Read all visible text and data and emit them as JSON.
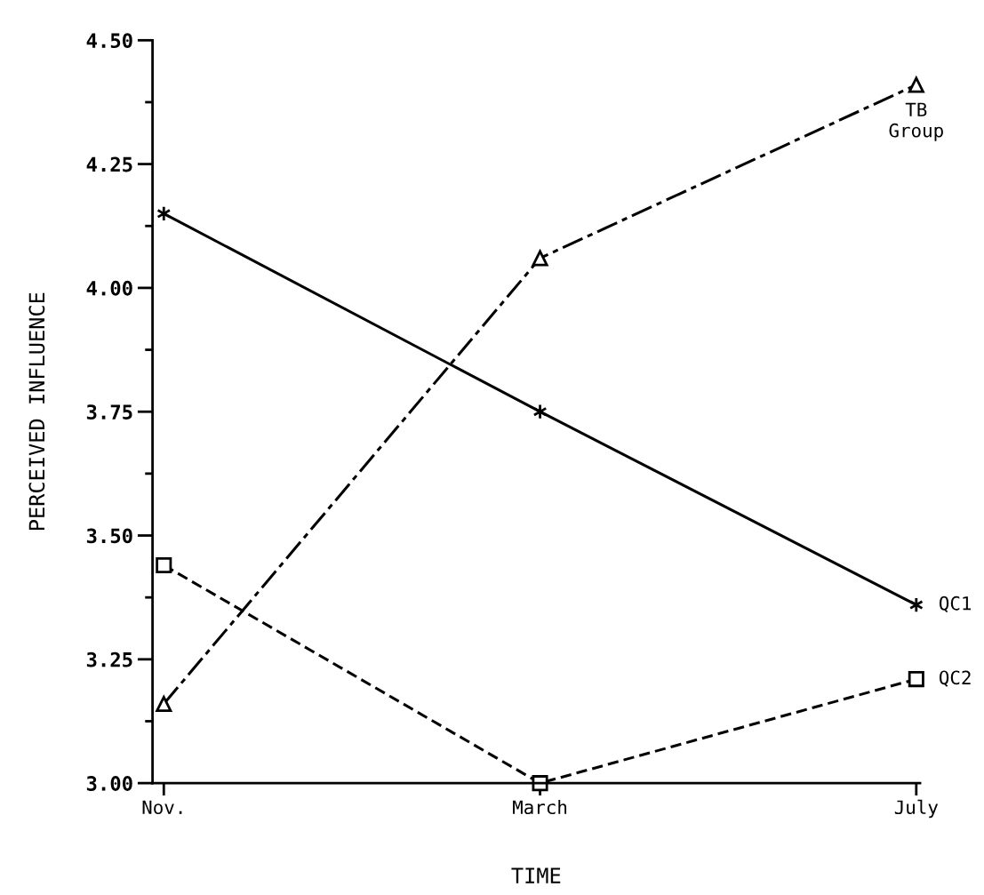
{
  "chart_data": {
    "type": "line",
    "xlabel": "TIME",
    "ylabel": "PERCEIVED INFLUENCE",
    "categories": [
      "Nov.",
      "March",
      "July"
    ],
    "series": [
      {
        "name": "QC1",
        "color": "#000000",
        "values": [
          4.15,
          3.75,
          3.36
        ],
        "marker": "cross",
        "line_style": "solid"
      },
      {
        "name": "QC2",
        "color": "#000000",
        "values": [
          3.44,
          3.0,
          3.21
        ],
        "marker": "square",
        "line_style": "dashed"
      },
      {
        "name": "TB\nGroup",
        "color": "#000000",
        "values": [
          3.16,
          4.06,
          4.41
        ],
        "marker": "triangle",
        "line_style": "dashdot"
      }
    ],
    "ylim": [
      3.0,
      4.5
    ],
    "yticks": [
      {
        "value": 3.0,
        "label": "3.00"
      },
      {
        "value": 3.25,
        "label": "3.25"
      },
      {
        "value": 3.5,
        "label": "3.50"
      },
      {
        "value": 3.75,
        "label": "3.75"
      },
      {
        "value": 4.0,
        "label": "4.00"
      },
      {
        "value": 4.25,
        "label": "4.25"
      },
      {
        "value": 4.5,
        "label": "4.50"
      }
    ],
    "grid": false,
    "legend": false
  }
}
